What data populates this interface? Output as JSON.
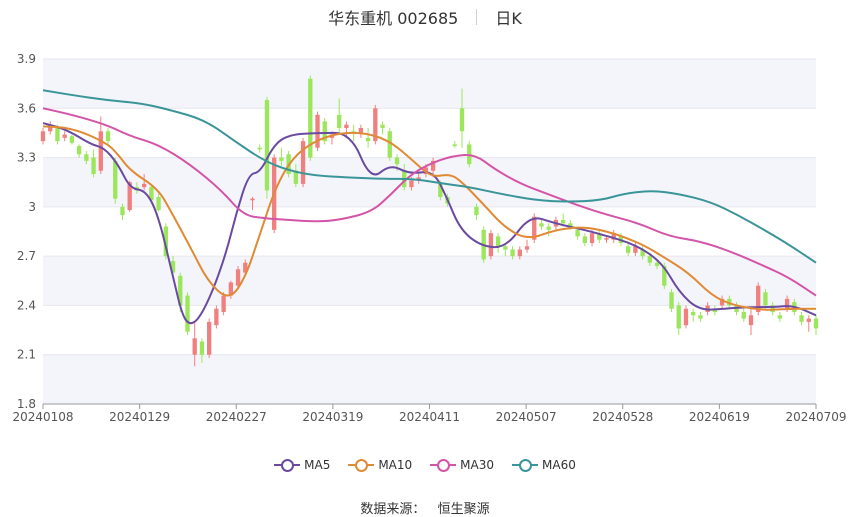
{
  "title": "华东重机 002685",
  "period": "日K",
  "source_label": "数据来源：",
  "source_name": "恒生聚源",
  "colors": {
    "up": "#f08080",
    "down": "#9be65a",
    "MA5": "#6a4aa0",
    "MA10": "#e08a35",
    "MA30": "#d455a8",
    "MA60": "#3a9598"
  },
  "chart_data": {
    "type": "candlestick",
    "title": "华东重机 002685",
    "ylim": [
      1.8,
      3.9
    ],
    "yticks": [
      "1.8",
      "2.1",
      "2.4",
      "2.7",
      "3",
      "3.3",
      "3.6",
      "3.9"
    ],
    "xtick_labels": [
      "20240108",
      "20240129",
      "20240227",
      "20240319",
      "20240411",
      "20240507",
      "20240528",
      "20240619",
      "20240709"
    ],
    "grid": true,
    "legend": [
      "MA5",
      "MA10",
      "MA30",
      "MA60"
    ],
    "legend_position": "bottom",
    "ohlc": [
      [
        3.4,
        3.48,
        3.38,
        3.46
      ],
      [
        3.46,
        3.52,
        3.44,
        3.5
      ],
      [
        3.49,
        3.5,
        3.38,
        3.4
      ],
      [
        3.42,
        3.46,
        3.4,
        3.44
      ],
      [
        3.43,
        3.44,
        3.38,
        3.39
      ],
      [
        3.37,
        3.38,
        3.3,
        3.32
      ],
      [
        3.32,
        3.34,
        3.26,
        3.28
      ],
      [
        3.3,
        3.35,
        3.18,
        3.2
      ],
      [
        3.22,
        3.55,
        3.2,
        3.46
      ],
      [
        3.46,
        3.48,
        3.38,
        3.4
      ],
      [
        3.28,
        3.3,
        3.02,
        3.05
      ],
      [
        3.0,
        3.02,
        2.92,
        2.95
      ],
      [
        2.98,
        3.16,
        2.97,
        3.15
      ],
      [
        3.12,
        3.15,
        3.08,
        3.1
      ],
      [
        3.12,
        3.2,
        3.1,
        3.14
      ],
      [
        3.12,
        3.14,
        3.02,
        3.04
      ],
      [
        3.06,
        3.08,
        2.97,
        2.98
      ],
      [
        2.88,
        2.9,
        2.68,
        2.7
      ],
      [
        2.67,
        2.7,
        2.56,
        2.6
      ],
      [
        2.58,
        2.6,
        2.36,
        2.4
      ],
      [
        2.46,
        2.48,
        2.22,
        2.24
      ],
      [
        2.1,
        2.3,
        2.03,
        2.2
      ],
      [
        2.18,
        2.2,
        2.05,
        2.1
      ],
      [
        2.1,
        2.32,
        2.08,
        2.3
      ],
      [
        2.28,
        2.4,
        2.26,
        2.38
      ],
      [
        2.36,
        2.48,
        2.34,
        2.46
      ],
      [
        2.46,
        2.55,
        2.44,
        2.54
      ],
      [
        2.52,
        2.64,
        2.5,
        2.62
      ],
      [
        2.6,
        2.68,
        2.58,
        2.66
      ],
      [
        3.04,
        3.06,
        2.98,
        3.05
      ],
      [
        3.36,
        3.38,
        3.33,
        3.35
      ],
      [
        3.65,
        3.67,
        3.05,
        3.1
      ],
      [
        2.86,
        3.32,
        2.84,
        3.3
      ],
      [
        3.3,
        3.36,
        3.25,
        3.28
      ],
      [
        3.32,
        3.34,
        3.18,
        3.2
      ],
      [
        3.22,
        3.26,
        3.12,
        3.14
      ],
      [
        3.14,
        3.42,
        3.12,
        3.4
      ],
      [
        3.78,
        3.8,
        3.28,
        3.3
      ],
      [
        3.36,
        3.58,
        3.34,
        3.56
      ],
      [
        3.52,
        3.54,
        3.38,
        3.4
      ],
      [
        3.42,
        3.46,
        3.38,
        3.44
      ],
      [
        3.56,
        3.66,
        3.44,
        3.48
      ],
      [
        3.48,
        3.52,
        3.42,
        3.5
      ],
      [
        3.46,
        3.5,
        3.4,
        3.45
      ],
      [
        3.45,
        3.5,
        3.42,
        3.48
      ],
      [
        3.42,
        3.48,
        3.36,
        3.4
      ],
      [
        3.4,
        3.62,
        3.38,
        3.6
      ],
      [
        3.5,
        3.52,
        3.44,
        3.48
      ],
      [
        3.46,
        3.48,
        3.28,
        3.3
      ],
      [
        3.3,
        3.32,
        3.22,
        3.26
      ],
      [
        3.22,
        3.26,
        3.1,
        3.12
      ],
      [
        3.12,
        3.18,
        3.1,
        3.16
      ],
      [
        3.16,
        3.2,
        3.14,
        3.18
      ],
      [
        3.2,
        3.26,
        3.18,
        3.24
      ],
      [
        3.22,
        3.3,
        3.18,
        3.28
      ],
      [
        3.14,
        3.16,
        3.04,
        3.06
      ],
      [
        3.06,
        3.08,
        3.0,
        3.02
      ],
      [
        3.38,
        3.4,
        3.36,
        3.37
      ],
      [
        3.6,
        3.72,
        3.36,
        3.46
      ],
      [
        3.38,
        3.4,
        3.24,
        3.26
      ],
      [
        3.0,
        3.02,
        2.92,
        2.95
      ],
      [
        2.86,
        2.88,
        2.66,
        2.68
      ],
      [
        2.7,
        2.86,
        2.68,
        2.84
      ],
      [
        2.82,
        2.84,
        2.72,
        2.76
      ],
      [
        2.76,
        2.78,
        2.7,
        2.74
      ],
      [
        2.74,
        2.76,
        2.68,
        2.7
      ],
      [
        2.7,
        2.76,
        2.68,
        2.74
      ],
      [
        2.74,
        2.8,
        2.72,
        2.76
      ],
      [
        2.8,
        2.96,
        2.78,
        2.94
      ],
      [
        2.9,
        2.92,
        2.86,
        2.88
      ],
      [
        2.88,
        2.9,
        2.82,
        2.86
      ],
      [
        2.88,
        2.94,
        2.86,
        2.92
      ],
      [
        2.92,
        2.96,
        2.88,
        2.9
      ],
      [
        2.9,
        2.92,
        2.86,
        2.88
      ],
      [
        2.86,
        2.88,
        2.8,
        2.82
      ],
      [
        2.82,
        2.84,
        2.76,
        2.78
      ],
      [
        2.78,
        2.86,
        2.76,
        2.84
      ],
      [
        2.84,
        2.86,
        2.78,
        2.8
      ],
      [
        2.8,
        2.82,
        2.78,
        2.81
      ],
      [
        2.8,
        2.86,
        2.78,
        2.84
      ],
      [
        2.82,
        2.84,
        2.76,
        2.78
      ],
      [
        2.76,
        2.78,
        2.7,
        2.72
      ],
      [
        2.72,
        2.78,
        2.7,
        2.76
      ],
      [
        2.74,
        2.76,
        2.68,
        2.7
      ],
      [
        2.7,
        2.72,
        2.64,
        2.66
      ],
      [
        2.66,
        2.68,
        2.62,
        2.64
      ],
      [
        2.64,
        2.66,
        2.5,
        2.52
      ],
      [
        2.48,
        2.5,
        2.36,
        2.38
      ],
      [
        2.4,
        2.42,
        2.22,
        2.26
      ],
      [
        2.28,
        2.4,
        2.26,
        2.38
      ],
      [
        2.36,
        2.38,
        2.3,
        2.34
      ],
      [
        2.34,
        2.36,
        2.3,
        2.32
      ],
      [
        2.36,
        2.42,
        2.34,
        2.4
      ],
      [
        2.38,
        2.4,
        2.34,
        2.36
      ],
      [
        2.4,
        2.46,
        2.38,
        2.44
      ],
      [
        2.44,
        2.46,
        2.38,
        2.4
      ],
      [
        2.4,
        2.42,
        2.34,
        2.36
      ],
      [
        2.36,
        2.38,
        2.3,
        2.32
      ],
      [
        2.28,
        2.38,
        2.22,
        2.34
      ],
      [
        2.36,
        2.54,
        2.34,
        2.52
      ],
      [
        2.48,
        2.5,
        2.38,
        2.4
      ],
      [
        2.4,
        2.42,
        2.34,
        2.36
      ],
      [
        2.34,
        2.36,
        2.3,
        2.32
      ],
      [
        2.38,
        2.46,
        2.36,
        2.44
      ],
      [
        2.42,
        2.44,
        2.34,
        2.36
      ],
      [
        2.34,
        2.36,
        2.28,
        2.3
      ],
      [
        2.3,
        2.34,
        2.24,
        2.32
      ],
      [
        2.32,
        2.34,
        2.22,
        2.26
      ]
    ],
    "ma": {
      "MA5": [
        [
          0,
          3.51
        ],
        [
          0.031,
          3.47
        ],
        [
          0.062,
          3.38
        ],
        [
          0.079,
          3.36
        ],
        [
          0.097,
          3.26
        ],
        [
          0.113,
          3.11
        ],
        [
          0.133,
          3.1
        ],
        [
          0.149,
          2.95
        ],
        [
          0.167,
          2.6
        ],
        [
          0.18,
          2.34
        ],
        [
          0.19,
          2.28
        ],
        [
          0.202,
          2.32
        ],
        [
          0.219,
          2.48
        ],
        [
          0.237,
          2.72
        ],
        [
          0.25,
          2.96
        ],
        [
          0.266,
          3.2
        ],
        [
          0.281,
          3.21
        ],
        [
          0.299,
          3.38
        ],
        [
          0.319,
          3.44
        ],
        [
          0.356,
          3.45
        ],
        [
          0.398,
          3.45
        ],
        [
          0.424,
          3.16
        ],
        [
          0.449,
          3.26
        ],
        [
          0.474,
          3.2
        ],
        [
          0.505,
          3.22
        ],
        [
          0.522,
          3.06
        ],
        [
          0.54,
          2.86
        ],
        [
          0.567,
          2.76
        ],
        [
          0.599,
          2.75
        ],
        [
          0.63,
          2.95
        ],
        [
          0.662,
          2.9
        ],
        [
          0.7,
          2.86
        ],
        [
          0.724,
          2.83
        ],
        [
          0.767,
          2.77
        ],
        [
          0.801,
          2.66
        ],
        [
          0.823,
          2.48
        ],
        [
          0.849,
          2.37
        ],
        [
          0.883,
          2.38
        ],
        [
          0.909,
          2.39
        ],
        [
          0.945,
          2.39
        ],
        [
          0.971,
          2.4
        ],
        [
          1.0,
          2.34
        ]
      ],
      "MA10": [
        [
          0,
          3.49
        ],
        [
          0.038,
          3.48
        ],
        [
          0.082,
          3.39
        ],
        [
          0.097,
          3.32
        ],
        [
          0.113,
          3.22
        ],
        [
          0.149,
          3.11
        ],
        [
          0.167,
          2.96
        ],
        [
          0.19,
          2.76
        ],
        [
          0.214,
          2.54
        ],
        [
          0.241,
          2.43
        ],
        [
          0.262,
          2.57
        ],
        [
          0.281,
          2.84
        ],
        [
          0.301,
          3.12
        ],
        [
          0.323,
          3.3
        ],
        [
          0.351,
          3.4
        ],
        [
          0.383,
          3.45
        ],
        [
          0.418,
          3.45
        ],
        [
          0.449,
          3.4
        ],
        [
          0.479,
          3.28
        ],
        [
          0.502,
          3.18
        ],
        [
          0.526,
          3.2
        ],
        [
          0.54,
          3.16
        ],
        [
          0.567,
          3.03
        ],
        [
          0.598,
          2.87
        ],
        [
          0.628,
          2.8
        ],
        [
          0.662,
          2.86
        ],
        [
          0.7,
          2.88
        ],
        [
          0.739,
          2.84
        ],
        [
          0.776,
          2.77
        ],
        [
          0.801,
          2.7
        ],
        [
          0.835,
          2.6
        ],
        [
          0.865,
          2.46
        ],
        [
          0.893,
          2.4
        ],
        [
          0.933,
          2.37
        ],
        [
          0.965,
          2.38
        ],
        [
          1.0,
          2.38
        ]
      ],
      "MA30": [
        [
          0,
          3.6
        ],
        [
          0.038,
          3.56
        ],
        [
          0.082,
          3.5
        ],
        [
          0.113,
          3.43
        ],
        [
          0.149,
          3.38
        ],
        [
          0.19,
          3.26
        ],
        [
          0.231,
          3.1
        ],
        [
          0.259,
          2.95
        ],
        [
          0.286,
          2.93
        ],
        [
          0.319,
          2.92
        ],
        [
          0.353,
          2.91
        ],
        [
          0.384,
          2.92
        ],
        [
          0.425,
          2.97
        ],
        [
          0.449,
          3.07
        ],
        [
          0.474,
          3.19
        ],
        [
          0.499,
          3.26
        ],
        [
          0.529,
          3.31
        ],
        [
          0.559,
          3.32
        ],
        [
          0.584,
          3.23
        ],
        [
          0.618,
          3.14
        ],
        [
          0.652,
          3.08
        ],
        [
          0.691,
          3.01
        ],
        [
          0.731,
          2.95
        ],
        [
          0.771,
          2.9
        ],
        [
          0.81,
          2.82
        ],
        [
          0.851,
          2.79
        ],
        [
          0.894,
          2.72
        ],
        [
          0.933,
          2.64
        ],
        [
          0.965,
          2.57
        ],
        [
          1.0,
          2.46
        ]
      ],
      "MA60": [
        [
          0,
          3.71
        ],
        [
          0.038,
          3.68
        ],
        [
          0.082,
          3.65
        ],
        [
          0.128,
          3.63
        ],
        [
          0.164,
          3.59
        ],
        [
          0.209,
          3.53
        ],
        [
          0.248,
          3.4
        ],
        [
          0.286,
          3.28
        ],
        [
          0.319,
          3.22
        ],
        [
          0.353,
          3.19
        ],
        [
          0.392,
          3.18
        ],
        [
          0.441,
          3.17
        ],
        [
          0.48,
          3.17
        ],
        [
          0.52,
          3.14
        ],
        [
          0.552,
          3.12
        ],
        [
          0.591,
          3.08
        ],
        [
          0.638,
          3.04
        ],
        [
          0.679,
          3.03
        ],
        [
          0.722,
          3.04
        ],
        [
          0.751,
          3.08
        ],
        [
          0.787,
          3.1
        ],
        [
          0.822,
          3.08
        ],
        [
          0.864,
          3.03
        ],
        [
          0.899,
          2.95
        ],
        [
          0.933,
          2.86
        ],
        [
          0.965,
          2.77
        ],
        [
          1.0,
          2.66
        ]
      ]
    }
  }
}
